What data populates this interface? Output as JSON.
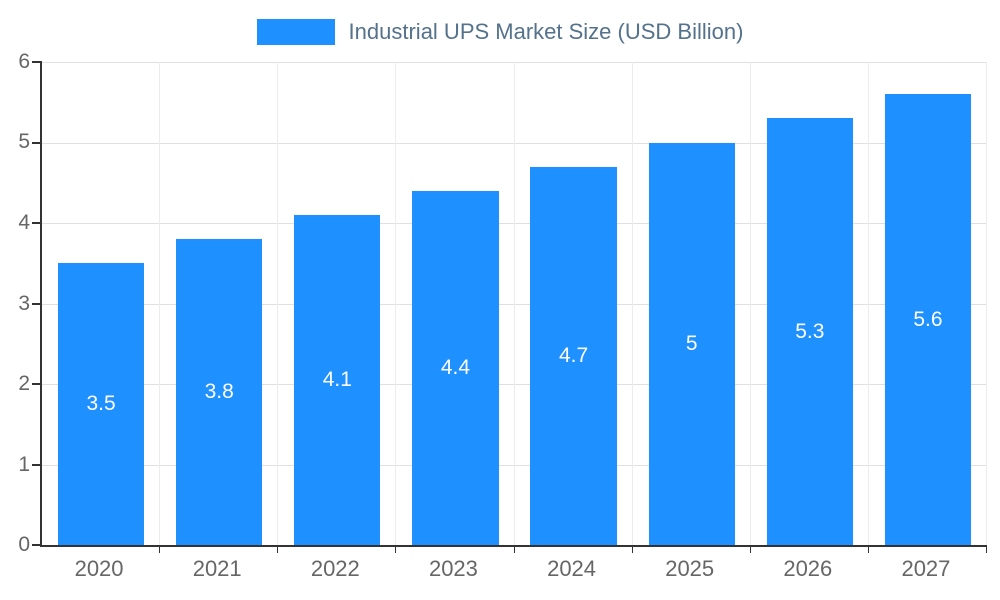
{
  "chart_data": {
    "type": "bar",
    "title": "Industrial UPS Market Size (USD Billion)",
    "categories": [
      "2020",
      "2021",
      "2022",
      "2023",
      "2024",
      "2025",
      "2026",
      "2027"
    ],
    "values": [
      3.5,
      3.8,
      4.1,
      4.4,
      4.7,
      5,
      5.3,
      5.6
    ],
    "value_labels": [
      "3.5",
      "3.8",
      "4.1",
      "4.4",
      "4.7",
      "5",
      "5.3",
      "5.6"
    ],
    "xlabel": "",
    "ylabel": "",
    "ylim": [
      0,
      6
    ],
    "yticks": [
      0,
      1,
      2,
      3,
      4,
      5,
      6
    ],
    "grid": true,
    "legend_position": "top",
    "colors": {
      "bar": "#1e90ff",
      "bar_label": "#ffffff",
      "axis": "#333333",
      "grid": "#e0e0e0",
      "tick_text": "#666666",
      "legend_text": "#54728c"
    }
  }
}
